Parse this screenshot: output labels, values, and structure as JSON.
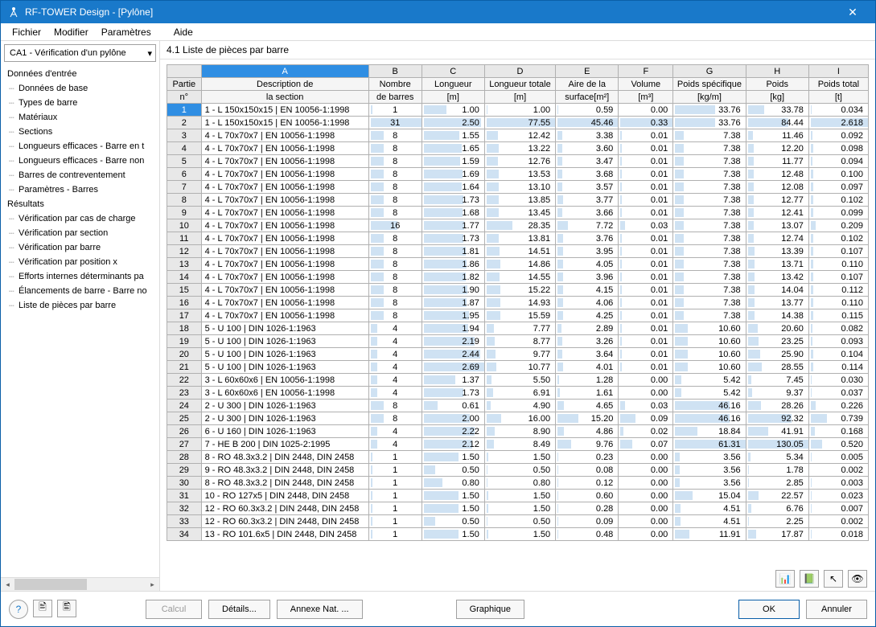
{
  "window": {
    "title": "RF-TOWER Design - [Pylône]"
  },
  "menu": [
    "Fichier",
    "Modifier",
    "Paramètres",
    "Aide"
  ],
  "dropdown": {
    "selected": "CA1 - Vérification d'un pylône"
  },
  "tree": {
    "groups": [
      {
        "title": "Données d'entrée",
        "items": [
          "Données de base",
          "Types de barre",
          "Matériaux",
          "Sections",
          "Longueurs efficaces - Barre en t",
          "Longueurs efficaces - Barre non",
          "Barres de contreventement",
          "Paramètres - Barres"
        ]
      },
      {
        "title": "Résultats",
        "items": [
          "Vérification par cas de charge",
          "Vérification par section",
          "Vérification par barre",
          "Vérification par position x",
          "Efforts internes déterminants pa",
          "Élancements de barre - Barre no",
          "Liste de pièces par barre"
        ]
      }
    ]
  },
  "content_title": "4.1 Liste de pièces par barre",
  "columns": {
    "letters": [
      "A",
      "B",
      "C",
      "D",
      "E",
      "F",
      "G",
      "H",
      "I"
    ],
    "header1": [
      "Partie",
      "Description de",
      "Nombre",
      "Longueur",
      "Longueur totale",
      "Aire de la",
      "Volume",
      "Poids spécifique",
      "Poids",
      "Poids total"
    ],
    "header2": [
      "n°",
      "la section",
      "de barres",
      "[m]",
      "[m]",
      "surface[m²]",
      "[m³]",
      "[kg/m]",
      "[kg]",
      "[t]"
    ],
    "widths": [
      42,
      205,
      65,
      77,
      87,
      77,
      67,
      89,
      77,
      73
    ]
  },
  "max": {
    "nb": 31,
    "len": 2.69,
    "lentot": 77.55,
    "aire": 45.46,
    "vol": 0.33,
    "ps": 61.31,
    "poids": 130.05,
    "pt": 2.618
  },
  "rows": [
    {
      "n": 1,
      "desc": "1 - L 150x150x15 | EN 10056-1:1998",
      "nb": 1,
      "len": "1.00",
      "lentot": "1.00",
      "aire": "0.59",
      "vol": "0.00",
      "ps": "33.76",
      "poids": "33.78",
      "pt": "0.034"
    },
    {
      "n": 2,
      "desc": "1 - L 150x150x15 | EN 10056-1:1998",
      "nb": 31,
      "len": "2.50",
      "lentot": "77.55",
      "aire": "45.46",
      "vol": "0.33",
      "ps": "33.76",
      "poids": "84.44",
      "pt": "2.618"
    },
    {
      "n": 3,
      "desc": "4 - L 70x70x7 | EN 10056-1:1998",
      "nb": 8,
      "len": "1.55",
      "lentot": "12.42",
      "aire": "3.38",
      "vol": "0.01",
      "ps": "7.38",
      "poids": "11.46",
      "pt": "0.092"
    },
    {
      "n": 4,
      "desc": "4 - L 70x70x7 | EN 10056-1:1998",
      "nb": 8,
      "len": "1.65",
      "lentot": "13.22",
      "aire": "3.60",
      "vol": "0.01",
      "ps": "7.38",
      "poids": "12.20",
      "pt": "0.098"
    },
    {
      "n": 5,
      "desc": "4 - L 70x70x7 | EN 10056-1:1998",
      "nb": 8,
      "len": "1.59",
      "lentot": "12.76",
      "aire": "3.47",
      "vol": "0.01",
      "ps": "7.38",
      "poids": "11.77",
      "pt": "0.094"
    },
    {
      "n": 6,
      "desc": "4 - L 70x70x7 | EN 10056-1:1998",
      "nb": 8,
      "len": "1.69",
      "lentot": "13.53",
      "aire": "3.68",
      "vol": "0.01",
      "ps": "7.38",
      "poids": "12.48",
      "pt": "0.100"
    },
    {
      "n": 7,
      "desc": "4 - L 70x70x7 | EN 10056-1:1998",
      "nb": 8,
      "len": "1.64",
      "lentot": "13.10",
      "aire": "3.57",
      "vol": "0.01",
      "ps": "7.38",
      "poids": "12.08",
      "pt": "0.097"
    },
    {
      "n": 8,
      "desc": "4 - L 70x70x7 | EN 10056-1:1998",
      "nb": 8,
      "len": "1.73",
      "lentot": "13.85",
      "aire": "3.77",
      "vol": "0.01",
      "ps": "7.38",
      "poids": "12.77",
      "pt": "0.102"
    },
    {
      "n": 9,
      "desc": "4 - L 70x70x7 | EN 10056-1:1998",
      "nb": 8,
      "len": "1.68",
      "lentot": "13.45",
      "aire": "3.66",
      "vol": "0.01",
      "ps": "7.38",
      "poids": "12.41",
      "pt": "0.099"
    },
    {
      "n": 10,
      "desc": "4 - L 70x70x7 | EN 10056-1:1998",
      "nb": 16,
      "len": "1.77",
      "lentot": "28.35",
      "aire": "7.72",
      "vol": "0.03",
      "ps": "7.38",
      "poids": "13.07",
      "pt": "0.209"
    },
    {
      "n": 11,
      "desc": "4 - L 70x70x7 | EN 10056-1:1998",
      "nb": 8,
      "len": "1.73",
      "lentot": "13.81",
      "aire": "3.76",
      "vol": "0.01",
      "ps": "7.38",
      "poids": "12.74",
      "pt": "0.102"
    },
    {
      "n": 12,
      "desc": "4 - L 70x70x7 | EN 10056-1:1998",
      "nb": 8,
      "len": "1.81",
      "lentot": "14.51",
      "aire": "3.95",
      "vol": "0.01",
      "ps": "7.38",
      "poids": "13.39",
      "pt": "0.107"
    },
    {
      "n": 13,
      "desc": "4 - L 70x70x7 | EN 10056-1:1998",
      "nb": 8,
      "len": "1.86",
      "lentot": "14.86",
      "aire": "4.05",
      "vol": "0.01",
      "ps": "7.38",
      "poids": "13.71",
      "pt": "0.110"
    },
    {
      "n": 14,
      "desc": "4 - L 70x70x7 | EN 10056-1:1998",
      "nb": 8,
      "len": "1.82",
      "lentot": "14.55",
      "aire": "3.96",
      "vol": "0.01",
      "ps": "7.38",
      "poids": "13.42",
      "pt": "0.107"
    },
    {
      "n": 15,
      "desc": "4 - L 70x70x7 | EN 10056-1:1998",
      "nb": 8,
      "len": "1.90",
      "lentot": "15.22",
      "aire": "4.15",
      "vol": "0.01",
      "ps": "7.38",
      "poids": "14.04",
      "pt": "0.112"
    },
    {
      "n": 16,
      "desc": "4 - L 70x70x7 | EN 10056-1:1998",
      "nb": 8,
      "len": "1.87",
      "lentot": "14.93",
      "aire": "4.06",
      "vol": "0.01",
      "ps": "7.38",
      "poids": "13.77",
      "pt": "0.110"
    },
    {
      "n": 17,
      "desc": "4 - L 70x70x7 | EN 10056-1:1998",
      "nb": 8,
      "len": "1.95",
      "lentot": "15.59",
      "aire": "4.25",
      "vol": "0.01",
      "ps": "7.38",
      "poids": "14.38",
      "pt": "0.115"
    },
    {
      "n": 18,
      "desc": "5 - U 100 | DIN 1026-1:1963",
      "nb": 4,
      "len": "1.94",
      "lentot": "7.77",
      "aire": "2.89",
      "vol": "0.01",
      "ps": "10.60",
      "poids": "20.60",
      "pt": "0.082"
    },
    {
      "n": 19,
      "desc": "5 - U 100 | DIN 1026-1:1963",
      "nb": 4,
      "len": "2.19",
      "lentot": "8.77",
      "aire": "3.26",
      "vol": "0.01",
      "ps": "10.60",
      "poids": "23.25",
      "pt": "0.093"
    },
    {
      "n": 20,
      "desc": "5 - U 100 | DIN 1026-1:1963",
      "nb": 4,
      "len": "2.44",
      "lentot": "9.77",
      "aire": "3.64",
      "vol": "0.01",
      "ps": "10.60",
      "poids": "25.90",
      "pt": "0.104"
    },
    {
      "n": 21,
      "desc": "5 - U 100 | DIN 1026-1:1963",
      "nb": 4,
      "len": "2.69",
      "lentot": "10.77",
      "aire": "4.01",
      "vol": "0.01",
      "ps": "10.60",
      "poids": "28.55",
      "pt": "0.114"
    },
    {
      "n": 22,
      "desc": "3 - L 60x60x6 | EN 10056-1:1998",
      "nb": 4,
      "len": "1.37",
      "lentot": "5.50",
      "aire": "1.28",
      "vol": "0.00",
      "ps": "5.42",
      "poids": "7.45",
      "pt": "0.030"
    },
    {
      "n": 23,
      "desc": "3 - L 60x60x6 | EN 10056-1:1998",
      "nb": 4,
      "len": "1.73",
      "lentot": "6.91",
      "aire": "1.61",
      "vol": "0.00",
      "ps": "5.42",
      "poids": "9.37",
      "pt": "0.037"
    },
    {
      "n": 24,
      "desc": "2 - U 300 | DIN 1026-1:1963",
      "nb": 8,
      "len": "0.61",
      "lentot": "4.90",
      "aire": "4.65",
      "vol": "0.03",
      "ps": "46.16",
      "poids": "28.26",
      "pt": "0.226"
    },
    {
      "n": 25,
      "desc": "2 - U 300 | DIN 1026-1:1963",
      "nb": 8,
      "len": "2.00",
      "lentot": "16.00",
      "aire": "15.20",
      "vol": "0.09",
      "ps": "46.16",
      "poids": "92.32",
      "pt": "0.739"
    },
    {
      "n": 26,
      "desc": "6 - U 160 | DIN 1026-1:1963",
      "nb": 4,
      "len": "2.22",
      "lentot": "8.90",
      "aire": "4.86",
      "vol": "0.02",
      "ps": "18.84",
      "poids": "41.91",
      "pt": "0.168"
    },
    {
      "n": 27,
      "desc": "7 - HE B 200 | DIN 1025-2:1995",
      "nb": 4,
      "len": "2.12",
      "lentot": "8.49",
      "aire": "9.76",
      "vol": "0.07",
      "ps": "61.31",
      "poids": "130.05",
      "pt": "0.520"
    },
    {
      "n": 28,
      "desc": "8 - RO 48.3x3.2 | DIN 2448, DIN 2458",
      "nb": 1,
      "len": "1.50",
      "lentot": "1.50",
      "aire": "0.23",
      "vol": "0.00",
      "ps": "3.56",
      "poids": "5.34",
      "pt": "0.005"
    },
    {
      "n": 29,
      "desc": "9 - RO 48.3x3.2 | DIN 2448, DIN 2458",
      "nb": 1,
      "len": "0.50",
      "lentot": "0.50",
      "aire": "0.08",
      "vol": "0.00",
      "ps": "3.56",
      "poids": "1.78",
      "pt": "0.002"
    },
    {
      "n": 30,
      "desc": "8 - RO 48.3x3.2 | DIN 2448, DIN 2458",
      "nb": 1,
      "len": "0.80",
      "lentot": "0.80",
      "aire": "0.12",
      "vol": "0.00",
      "ps": "3.56",
      "poids": "2.85",
      "pt": "0.003"
    },
    {
      "n": 31,
      "desc": "10 - RO 127x5 | DIN 2448, DIN 2458",
      "nb": 1,
      "len": "1.50",
      "lentot": "1.50",
      "aire": "0.60",
      "vol": "0.00",
      "ps": "15.04",
      "poids": "22.57",
      "pt": "0.023"
    },
    {
      "n": 32,
      "desc": "12 - RO 60.3x3.2 | DIN 2448, DIN 2458",
      "nb": 1,
      "len": "1.50",
      "lentot": "1.50",
      "aire": "0.28",
      "vol": "0.00",
      "ps": "4.51",
      "poids": "6.76",
      "pt": "0.007"
    },
    {
      "n": 33,
      "desc": "12 - RO 60.3x3.2 | DIN 2448, DIN 2458",
      "nb": 1,
      "len": "0.50",
      "lentot": "0.50",
      "aire": "0.09",
      "vol": "0.00",
      "ps": "4.51",
      "poids": "2.25",
      "pt": "0.002"
    },
    {
      "n": 34,
      "desc": "13 - RO 101.6x5 | DIN 2448, DIN 2458",
      "nb": 1,
      "len": "1.50",
      "lentot": "1.50",
      "aire": "0.48",
      "vol": "0.00",
      "ps": "11.91",
      "poids": "17.87",
      "pt": "0.018"
    }
  ],
  "buttons": {
    "calcul": "Calcul",
    "details": "Détails...",
    "annexe": "Annexe Nat. ...",
    "graphique": "Graphique",
    "ok": "OK",
    "annuler": "Annuler"
  },
  "colors": {
    "titlebar": "#1979ca",
    "selected_header": "#2f8ee3",
    "bar_fill": "#cfe2f3",
    "grid_border": "#b0b0b0"
  }
}
